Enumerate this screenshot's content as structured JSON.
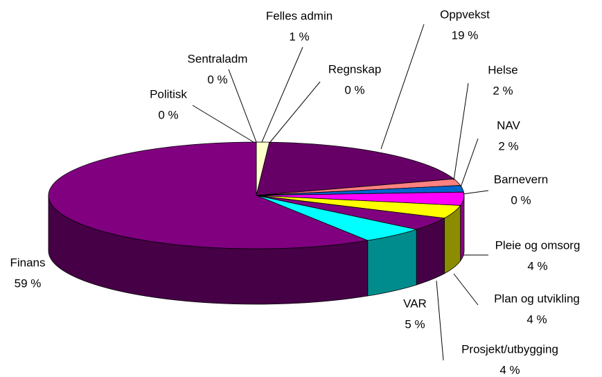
{
  "chart_data": {
    "type": "pie3d",
    "categories": [
      "Politisk",
      "Sentraladm",
      "Felles admin",
      "Regnskap",
      "Oppvekst",
      "Helse",
      "NAV",
      "Barnevern",
      "Pleie og omsorg",
      "Plan og utvikling",
      "Prosjekt/utbygging",
      "VAR",
      "Finans"
    ],
    "values": [
      0,
      0,
      1,
      0,
      19,
      2,
      2,
      0,
      4,
      4,
      4,
      5,
      59
    ],
    "value_labels": [
      "0 %",
      "0 %",
      "1 %",
      "0 %",
      "19 %",
      "2 %",
      "2 %",
      "0 %",
      "4 %",
      "4 %",
      "4 %",
      "5 %",
      "59 %"
    ],
    "colors": [
      "#ffffcc",
      "#ccffff",
      "#ffffcc",
      "#ccffff",
      "#660066",
      "#ff8080",
      "#0066cc",
      "#000080",
      "#ff00ff",
      "#ffff00",
      "#800080",
      "#00ffff",
      "#800080"
    ]
  }
}
